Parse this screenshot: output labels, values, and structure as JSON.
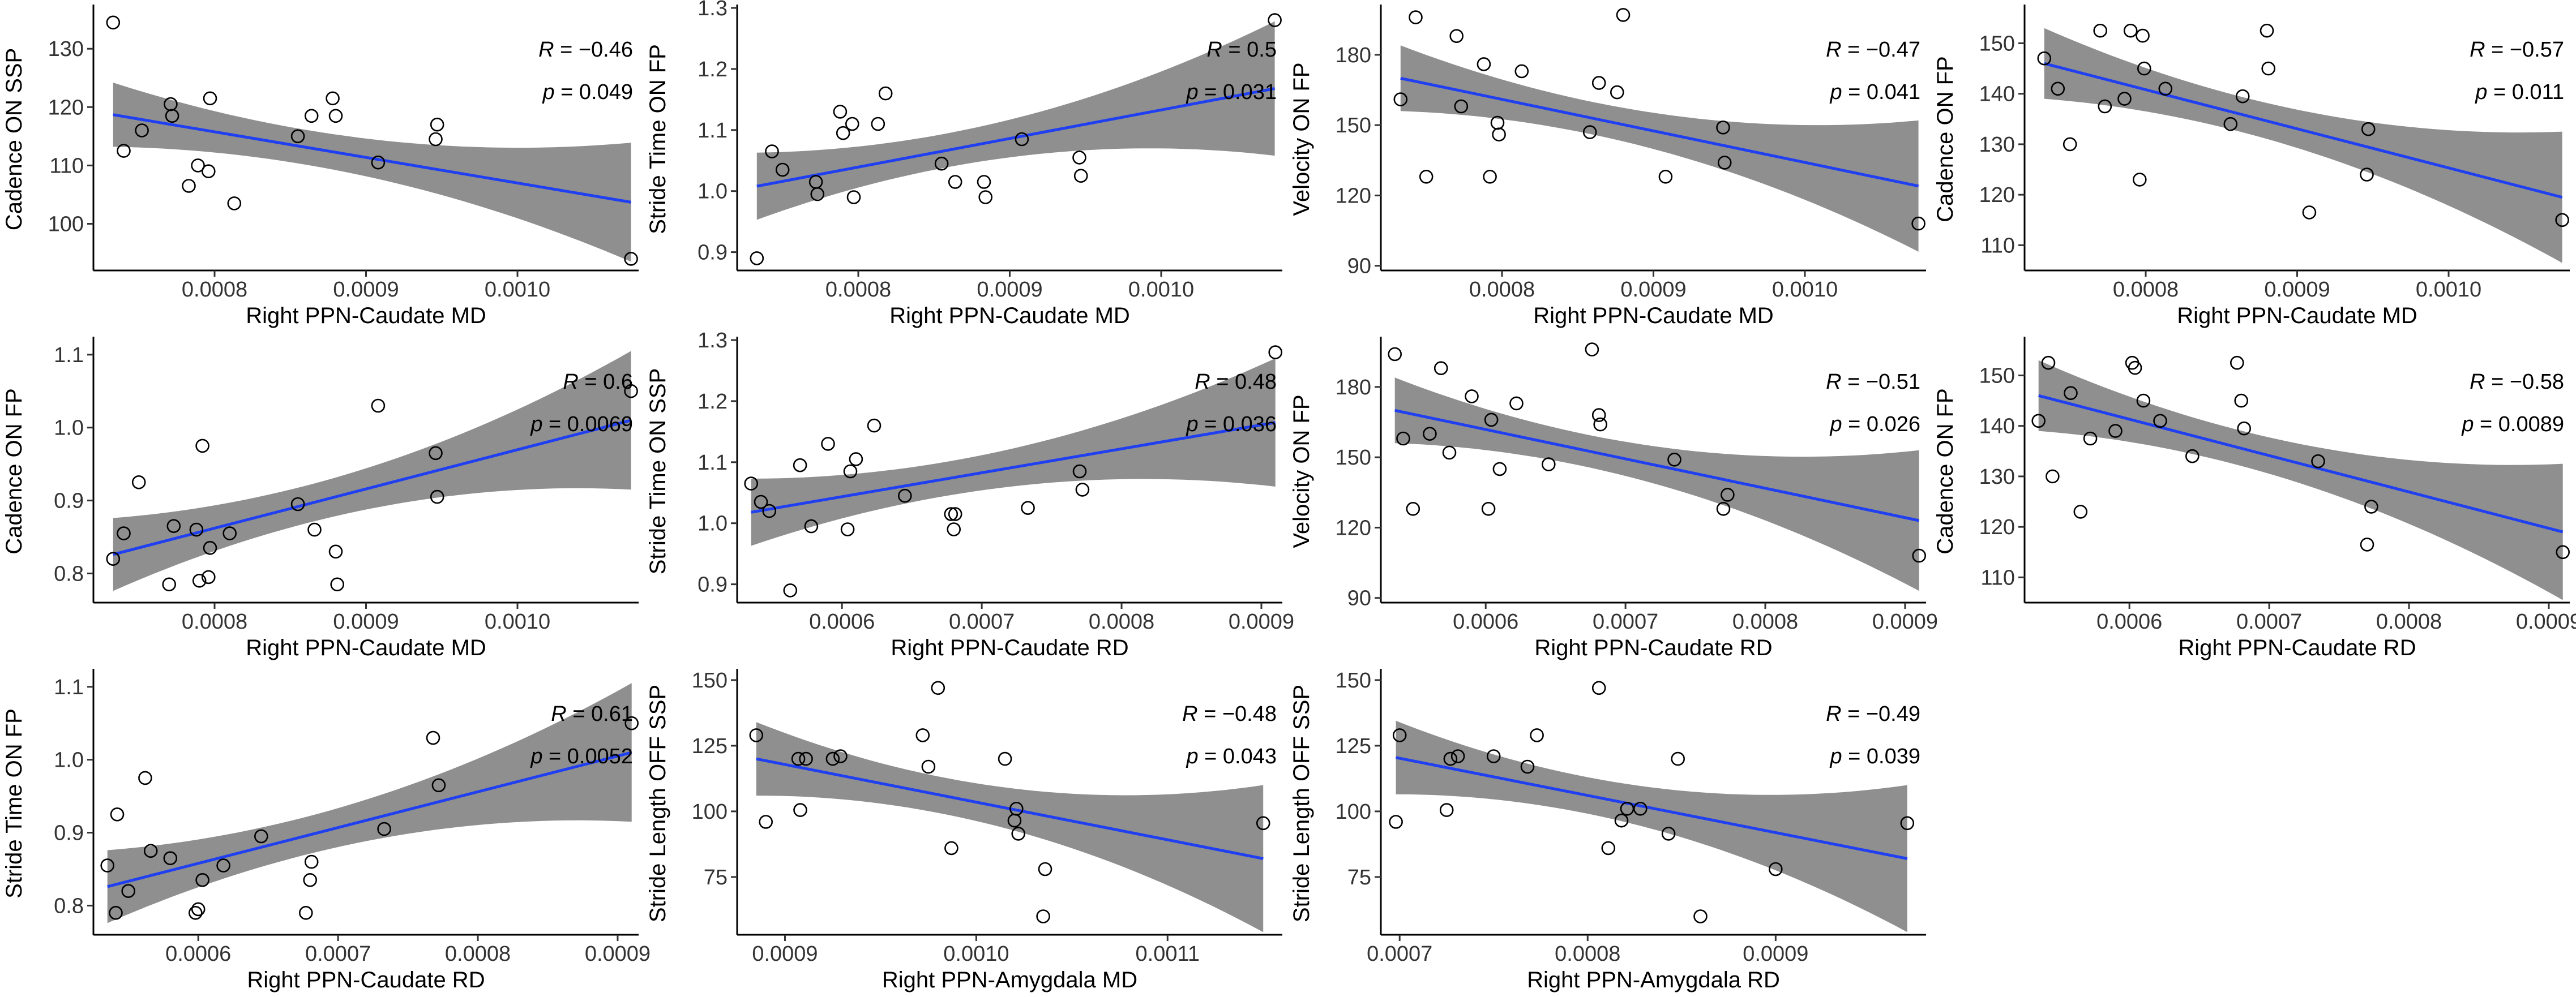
{
  "chart_data": [
    {
      "id": "p1",
      "type": "scatter",
      "xlabel": "Right PPN-Caudate MD",
      "ylabel": "Cadence ON SSP",
      "xlim": [
        0.00072,
        0.00108
      ],
      "ylim": [
        92,
        137
      ],
      "xticks": [
        0.0008,
        0.0009,
        0.001
      ],
      "xtick_labels": [
        "0.0008",
        "0.0009",
        "0.0010"
      ],
      "yticks": [
        100,
        110,
        120,
        130
      ],
      "ytick_labels": [
        "100",
        "110",
        "120",
        "130"
      ],
      "x": [
        0.000733,
        0.00074,
        0.000752,
        0.000771,
        0.000772,
        0.000783,
        0.000789,
        0.000796,
        0.000797,
        0.000813,
        0.000855,
        0.000864,
        0.000878,
        0.00088,
        0.000908,
        0.000946,
        0.000947,
        0.001075
      ],
      "y": [
        134.5,
        112.5,
        116,
        120.5,
        118.5,
        106.5,
        110,
        109,
        121.5,
        103.5,
        115,
        118.5,
        121.5,
        118.5,
        110.5,
        114.5,
        117,
        94
      ],
      "fit": {
        "x0": 0.000733,
        "y0": 118.7,
        "x1": 0.001075,
        "y1": 103.7
      },
      "band_halfwidth": [
        5.5,
        3.0,
        10.2
      ],
      "stat_r": "R = −0.46",
      "stat_p": "p = 0.049"
    },
    {
      "id": "p2",
      "type": "scatter",
      "xlabel": "Right PPN-Caudate MD",
      "ylabel": "Stride Time ON FP",
      "xlim": [
        0.00072,
        0.00108
      ],
      "ylim": [
        0.87,
        1.3
      ],
      "xticks": [
        0.0008,
        0.0009,
        0.001
      ],
      "xtick_labels": [
        "0.0008",
        "0.0009",
        "0.0010"
      ],
      "yticks": [
        0.9,
        1.0,
        1.1,
        1.2,
        1.3
      ],
      "ytick_labels": [
        "0.9",
        "1.0",
        "1.1",
        "1.2",
        "1.3"
      ],
      "x": [
        0.000733,
        0.000743,
        0.00075,
        0.000772,
        0.000773,
        0.000788,
        0.00079,
        0.000796,
        0.000797,
        0.000813,
        0.000818,
        0.000855,
        0.000864,
        0.000883,
        0.000884,
        0.000908,
        0.000946,
        0.000947,
        0.001075
      ],
      "y": [
        0.89,
        1.065,
        1.035,
        1.015,
        0.995,
        1.13,
        1.095,
        1.11,
        0.99,
        1.11,
        1.16,
        1.045,
        1.015,
        1.015,
        0.99,
        1.085,
        1.055,
        1.025,
        1.28
      ],
      "fit": {
        "x0": 0.000733,
        "y0": 1.008,
        "x1": 0.001075,
        "y1": 1.168
      },
      "band_halfwidth": [
        0.055,
        0.028,
        0.11
      ],
      "stat_r": "R = 0.5",
      "stat_p": "p = 0.031"
    },
    {
      "id": "p3",
      "type": "scatter",
      "xlabel": "Right PPN-Caudate MD",
      "ylabel": "Velocity ON FP",
      "xlim": [
        0.00072,
        0.00108
      ],
      "ylim": [
        88,
        200
      ],
      "xticks": [
        0.0008,
        0.0009,
        0.001
      ],
      "xtick_labels": [
        "0.0008",
        "0.0009",
        "0.0010"
      ],
      "yticks": [
        90,
        120,
        150,
        180
      ],
      "ytick_labels": [
        "90",
        "120",
        "150",
        "180"
      ],
      "x": [
        0.000733,
        0.000743,
        0.00075,
        0.00077,
        0.000773,
        0.000788,
        0.000792,
        0.000797,
        0.000798,
        0.000813,
        0.000858,
        0.000864,
        0.000876,
        0.00088,
        0.000908,
        0.000946,
        0.000947,
        0.001075
      ],
      "y": [
        161,
        196,
        128,
        188,
        158,
        176,
        128,
        151,
        146,
        173,
        147,
        168,
        164,
        197,
        128,
        149,
        134,
        108
      ],
      "fit": {
        "x0": 0.000733,
        "y0": 170,
        "x1": 0.001075,
        "y1": 124
      },
      "band_halfwidth": [
        14,
        7,
        28
      ],
      "stat_r": "R = −0.47",
      "stat_p": "p = 0.041"
    },
    {
      "id": "p4",
      "type": "scatter",
      "xlabel": "Right PPN-Caudate MD",
      "ylabel": "Cadence ON FP",
      "xlim": [
        0.00072,
        0.00108
      ],
      "ylim": [
        105,
        157
      ],
      "xticks": [
        0.0008,
        0.0009,
        0.001
      ],
      "xtick_labels": [
        "0.0008",
        "0.0009",
        "0.0010"
      ],
      "yticks": [
        110,
        120,
        130,
        140,
        150
      ],
      "ytick_labels": [
        "110",
        "120",
        "130",
        "140",
        "150"
      ],
      "x": [
        0.000733,
        0.000742,
        0.00075,
        0.00077,
        0.000773,
        0.000786,
        0.00079,
        0.000796,
        0.000798,
        0.000799,
        0.000813,
        0.000856,
        0.000864,
        0.00088,
        0.000881,
        0.000908,
        0.000946,
        0.000947,
        0.001075
      ],
      "y": [
        147,
        141,
        130,
        152.5,
        137.5,
        139,
        152.5,
        123,
        151.5,
        145,
        141,
        134,
        139.5,
        152.5,
        145,
        116.5,
        124,
        133,
        115
      ],
      "fit": {
        "x0": 0.000733,
        "y0": 146,
        "x1": 0.001075,
        "y1": 119.5
      },
      "band_halfwidth": [
        7,
        3.5,
        13
      ],
      "stat_r": "R = −0.57",
      "stat_p": "p = 0.011"
    },
    {
      "id": "p5",
      "type": "scatter",
      "xlabel": "Right PPN-Caudate MD",
      "ylabel": "Cadence ON FP",
      "xlim": [
        0.00072,
        0.00108
      ],
      "ylim": [
        0.76,
        1.12
      ],
      "xticks": [
        0.0008,
        0.0009,
        0.001
      ],
      "xtick_labels": [
        "0.0008",
        "0.0009",
        "0.0010"
      ],
      "yticks": [
        0.8,
        0.9,
        1.0,
        1.1
      ],
      "ytick_labels": [
        "0.8",
        "0.9",
        "1.0",
        "1.1"
      ],
      "x": [
        0.000733,
        0.00074,
        0.00075,
        0.00077,
        0.000773,
        0.000788,
        0.00079,
        0.000792,
        0.000796,
        0.000797,
        0.00081,
        0.000855,
        0.000866,
        0.00088,
        0.000881,
        0.000908,
        0.000946,
        0.000947,
        0.001075
      ],
      "y": [
        0.82,
        0.855,
        0.925,
        0.785,
        0.865,
        0.86,
        0.79,
        0.975,
        0.795,
        0.835,
        0.855,
        0.895,
        0.86,
        0.83,
        0.785,
        1.03,
        0.965,
        0.905,
        1.05
      ],
      "fit": {
        "x0": 0.000733,
        "y0": 0.826,
        "x1": 0.001075,
        "y1": 1.01
      },
      "band_halfwidth": [
        0.05,
        0.026,
        0.095
      ],
      "stat_r": "R = 0.6",
      "stat_p": "p = 0.0069"
    },
    {
      "id": "p6",
      "type": "scatter",
      "xlabel": "Right PPN-Caudate RD",
      "ylabel": "Stride Time ON SSP",
      "xlim": [
        0.000525,
        0.000915
      ],
      "ylim": [
        0.87,
        1.3
      ],
      "xticks": [
        0.0006,
        0.0007,
        0.0008,
        0.0009
      ],
      "xtick_labels": [
        "0.0006",
        "0.0007",
        "0.0008",
        "0.0009"
      ],
      "yticks": [
        0.9,
        1.0,
        1.1,
        1.2,
        1.3
      ],
      "ytick_labels": [
        "0.9",
        "1.0",
        "1.1",
        "1.2",
        "1.3"
      ],
      "x": [
        0.000535,
        0.000542,
        0.000548,
        0.000563,
        0.00057,
        0.000578,
        0.00059,
        0.000604,
        0.000606,
        0.00061,
        0.000623,
        0.000645,
        0.000678,
        0.00068,
        0.000681,
        0.000733,
        0.00077,
        0.000772,
        0.00091
      ],
      "y": [
        1.065,
        1.035,
        1.02,
        0.89,
        1.095,
        0.995,
        1.13,
        0.99,
        1.085,
        1.105,
        1.16,
        1.045,
        1.015,
        0.99,
        1.015,
        1.025,
        1.085,
        1.055,
        1.28
      ],
      "fit": {
        "x0": 0.000535,
        "y0": 1.018,
        "x1": 0.00091,
        "y1": 1.165
      },
      "band_halfwidth": [
        0.055,
        0.028,
        0.105
      ],
      "stat_r": "R = 0.48",
      "stat_p": "p = 0.036"
    },
    {
      "id": "p7",
      "type": "scatter",
      "xlabel": "Right PPN-Caudate RD",
      "ylabel": "Velocity ON FP",
      "xlim": [
        0.000525,
        0.000915
      ],
      "ylim": [
        88,
        200
      ],
      "xticks": [
        0.0006,
        0.0007,
        0.0008,
        0.0009
      ],
      "xtick_labels": [
        "0.0006",
        "0.0007",
        "0.0008",
        "0.0009"
      ],
      "x": [
        0.000535,
        0.000541,
        0.000548,
        0.00056,
        0.000568,
        0.000574,
        0.00059,
        0.000602,
        0.000604,
        0.00061,
        0.000622,
        0.000645,
        0.000676,
        0.000681,
        0.000682,
        0.000735,
        0.00077,
        0.000773,
        0.00091
      ],
      "yticks": [
        90,
        120,
        150,
        180
      ],
      "ytick_labels": [
        "90",
        "120",
        "150",
        "180"
      ],
      "y": [
        194,
        158,
        128,
        160,
        188,
        152,
        176,
        128,
        166,
        145,
        173,
        147,
        196,
        168,
        164,
        149,
        128,
        134,
        108
      ],
      "fit": {
        "x0": 0.000535,
        "y0": 170,
        "x1": 0.00091,
        "y1": 123
      },
      "band_halfwidth": [
        14,
        7,
        30
      ],
      "stat_r": "R = −0.51",
      "stat_p": "p = 0.026"
    },
    {
      "id": "p8",
      "type": "scatter",
      "xlabel": "Right PPN-Caudate RD",
      "ylabel": "Cadence ON FP",
      "xlim": [
        0.000525,
        0.000915
      ],
      "ylim": [
        105,
        157
      ],
      "xticks": [
        0.0006,
        0.0007,
        0.0008,
        0.0009
      ],
      "xtick_labels": [
        "0.0006",
        "0.0007",
        "0.0008",
        "0.0009"
      ],
      "yticks": [
        110,
        120,
        130,
        140,
        150
      ],
      "ytick_labels": [
        "110",
        "120",
        "130",
        "140",
        "150"
      ],
      "x": [
        0.000535,
        0.000542,
        0.000545,
        0.000558,
        0.000565,
        0.000572,
        0.00059,
        0.000602,
        0.000604,
        0.00061,
        0.000622,
        0.000645,
        0.000677,
        0.00068,
        0.000682,
        0.000735,
        0.00077,
        0.000773,
        0.00091
      ],
      "y": [
        141,
        152.5,
        130,
        146.5,
        123,
        137.5,
        139,
        152.5,
        151.5,
        145,
        141,
        134,
        152.5,
        145,
        139.5,
        133,
        116.5,
        124,
        115
      ],
      "fit": {
        "x0": 0.000535,
        "y0": 146,
        "x1": 0.00091,
        "y1": 119
      },
      "band_halfwidth": [
        7,
        3.5,
        13.5
      ],
      "stat_r": "R = −0.58",
      "stat_p": "p = 0.0089"
    },
    {
      "id": "p9",
      "type": "scatter",
      "xlabel": "Right PPN-Caudate RD",
      "ylabel": "Stride Time ON FP",
      "xlim": [
        0.000525,
        0.000915
      ],
      "ylim": [
        0.76,
        1.12
      ],
      "xticks": [
        0.0006,
        0.0007,
        0.0008,
        0.0009
      ],
      "xtick_labels": [
        "0.0006",
        "0.0007",
        "0.0008",
        "0.0009"
      ],
      "yticks": [
        0.8,
        0.9,
        1.0,
        1.1
      ],
      "ytick_labels": [
        "0.8",
        "0.9",
        "1.0",
        "1.1"
      ],
      "x": [
        0.000535,
        0.000541,
        0.000542,
        0.00055,
        0.000562,
        0.000566,
        0.00058,
        0.000598,
        0.0006,
        0.000603,
        0.000618,
        0.000645,
        0.000677,
        0.00068,
        0.000681,
        0.000733,
        0.000768,
        0.000772,
        0.00091
      ],
      "y": [
        0.855,
        0.79,
        0.925,
        0.82,
        0.975,
        0.875,
        0.865,
        0.79,
        0.795,
        0.835,
        0.855,
        0.895,
        0.79,
        0.835,
        0.86,
        0.905,
        1.03,
        0.965,
        1.05
      ],
      "fit": {
        "x0": 0.000535,
        "y0": 0.826,
        "x1": 0.00091,
        "y1": 1.01
      },
      "band_halfwidth": [
        0.05,
        0.026,
        0.095
      ],
      "stat_r": "R = 0.61",
      "stat_p": "p = 0.0052"
    },
    {
      "id": "p10",
      "type": "scatter",
      "xlabel": "Right PPN-Amygdala MD",
      "ylabel": "Stride Length OFF SSP",
      "xlim": [
        0.000875,
        0.00116
      ],
      "ylim": [
        53,
        153
      ],
      "xticks": [
        0.0009,
        0.001,
        0.0011
      ],
      "xtick_labels": [
        "0.0009",
        "0.0010",
        "0.0011"
      ],
      "yticks": [
        75,
        100,
        125,
        150
      ],
      "ytick_labels": [
        "75",
        "100",
        "125",
        "150"
      ],
      "x": [
        0.000885,
        0.00089,
        0.000907,
        0.000908,
        0.000911,
        0.000925,
        0.000929,
        0.000972,
        0.000975,
        0.00098,
        0.000987,
        0.001015,
        0.00102,
        0.001021,
        0.001022,
        0.001035,
        0.001036,
        0.00115
      ],
      "y": [
        129,
        96,
        120,
        100.5,
        120,
        120,
        121,
        129,
        117,
        147,
        86,
        120,
        96.5,
        101,
        91.5,
        60,
        78,
        95.5
      ],
      "fit": {
        "x0": 0.000885,
        "y0": 120,
        "x1": 0.00115,
        "y1": 82
      },
      "band_halfwidth": [
        14,
        7,
        28
      ],
      "stat_r": "R = −0.48",
      "stat_p": "p = 0.043"
    },
    {
      "id": "p11",
      "type": "scatter",
      "xlabel": "Right PPN-Amygdala RD",
      "ylabel": "Stride Length OFF SSP",
      "xlim": [
        0.00069,
        0.00098
      ],
      "ylim": [
        53,
        153
      ],
      "xticks": [
        0.0007,
        0.0008,
        0.0009
      ],
      "xtick_labels": [
        "0.0007",
        "0.0008",
        "0.0009"
      ],
      "yticks": [
        75,
        100,
        125,
        150
      ],
      "ytick_labels": [
        "75",
        "100",
        "125",
        "150"
      ],
      "x": [
        0.000698,
        0.0007,
        0.000725,
        0.000727,
        0.000731,
        0.00075,
        0.000768,
        0.000773,
        0.000806,
        0.000811,
        0.000818,
        0.000821,
        0.000828,
        0.000843,
        0.000848,
        0.00086,
        0.0009,
        0.00097
      ],
      "y": [
        96,
        129,
        100.5,
        120,
        121,
        121,
        117,
        129,
        147,
        86,
        96.5,
        101,
        101,
        91.5,
        120,
        60,
        78,
        95.5
      ],
      "fit": {
        "x0": 0.000698,
        "y0": 120.5,
        "x1": 0.00097,
        "y1": 82
      },
      "band_halfwidth": [
        14,
        7,
        28
      ],
      "stat_r": "R = −0.49",
      "stat_p": "p = 0.039"
    }
  ]
}
